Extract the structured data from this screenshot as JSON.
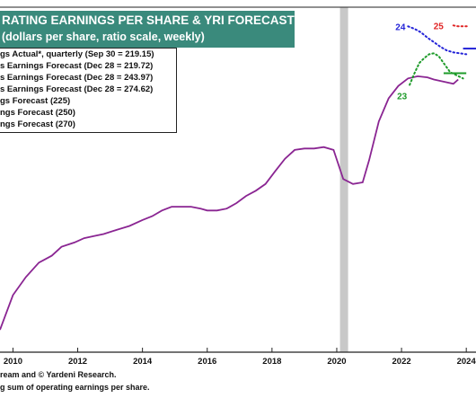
{
  "header": {
    "title": "RATING EARNINGS PER SHARE & YRI FORECASTS",
    "subtitle": "(dollars per share, ratio scale, weekly)"
  },
  "legend": [
    "gs Actual*, quarterly (Sep 30 = 219.15)",
    "s Earnings Forecast (Dec 28 = 219.72)",
    "s Earnings Forecast (Dec 28 = 243.97)",
    "s Earnings Forecast (Dec 28 = 274.62)",
    "gs   Forecast (225)",
    "ngs Forecast (250)",
    "ngs Forecast (270)"
  ],
  "footer": {
    "source": "ream and © Yardeni Research.",
    "note": "g sum of operating earnings per share."
  },
  "chart_data": {
    "type": "line",
    "x_ticks": [
      "2010",
      "2012",
      "2014",
      "2016",
      "2018",
      "2020",
      "2022",
      "2024"
    ],
    "xlim": [
      2009.6,
      2024.3
    ],
    "ylim": [
      70,
      285
    ],
    "y_scale": "log",
    "recession_shading": [
      2020.1,
      2020.35
    ],
    "colors": {
      "actual": "#8a2592",
      "forecast_2023": "#1e9b2a",
      "forecast_2024": "#2424d8",
      "forecast_2025": "#e02424",
      "recession": "#c8c8c8"
    },
    "series": [
      {
        "key": "actual",
        "x": [
          2009.6,
          2010.0,
          2010.4,
          2010.8,
          2011.2,
          2011.5,
          2011.9,
          2012.2,
          2012.5,
          2012.8,
          2013.2,
          2013.6,
          2014.0,
          2014.3,
          2014.6,
          2014.9,
          2015.2,
          2015.5,
          2015.8,
          2016.0,
          2016.3,
          2016.6,
          2016.9,
          2017.2,
          2017.5,
          2017.8,
          2018.1,
          2018.4,
          2018.7,
          2019.0,
          2019.3,
          2019.6,
          2019.9,
          2020.2,
          2020.5,
          2020.8,
          2021.0,
          2021.3,
          2021.6,
          2021.9,
          2022.2,
          2022.5,
          2022.8,
          2023.0,
          2023.3,
          2023.6,
          2023.75
        ],
        "values": [
          75,
          87,
          94,
          100,
          103,
          107,
          109,
          111,
          112,
          113,
          115,
          117,
          120,
          122,
          125,
          127,
          127,
          127,
          126,
          125,
          125,
          126,
          129,
          133,
          136,
          140,
          148,
          156,
          162,
          163,
          163,
          164,
          162,
          143,
          140,
          141,
          155,
          183,
          202,
          213,
          220,
          222,
          221,
          219,
          217,
          215,
          219
        ]
      },
      {
        "key": "forecast_2023",
        "label": "23",
        "x": [
          2022.25,
          2022.4,
          2022.55,
          2022.7,
          2022.85,
          2023.0,
          2023.15,
          2023.3,
          2023.5,
          2023.7,
          2023.9
        ],
        "values": [
          214,
          225,
          235,
          240,
          244,
          245,
          242,
          235,
          226,
          223,
          220
        ]
      },
      {
        "key": "forecast_2024",
        "label": "24",
        "x": [
          2022.2,
          2022.4,
          2022.6,
          2022.8,
          2023.0,
          2023.2,
          2023.4,
          2023.6,
          2023.8,
          2024.0
        ],
        "values": [
          275,
          272,
          268,
          262,
          257,
          252,
          248,
          246,
          245,
          244
        ]
      },
      {
        "key": "forecast_2025",
        "label": "25",
        "x": [
          2023.6,
          2023.75,
          2023.9,
          2024.05
        ],
        "values": [
          276,
          275,
          275,
          275
        ]
      }
    ],
    "target_lines": [
      {
        "key": "forecast_2023",
        "x": [
          2023.3,
          2024.0
        ],
        "value": 225
      },
      {
        "key": "forecast_2024",
        "x": [
          2023.9,
          2024.3
        ],
        "value": 250
      }
    ]
  }
}
